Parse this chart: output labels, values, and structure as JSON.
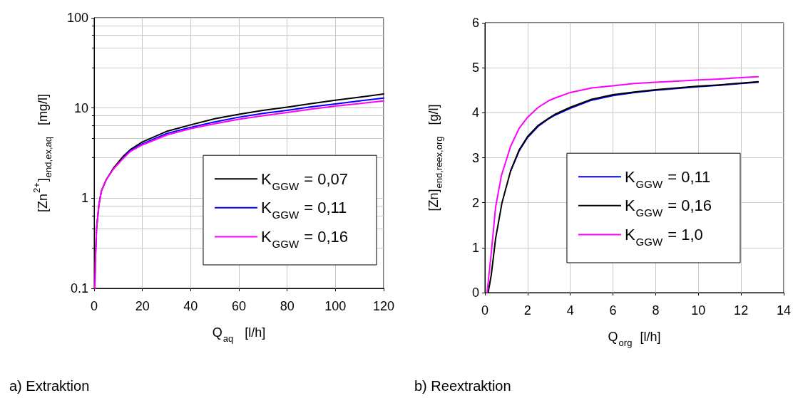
{
  "chart_data": [
    {
      "type": "line",
      "title": "a) Extraktion",
      "xlabel": "Q$_{aq}$   [l/h]",
      "ylabel": "[Zn$^{2+}$]$_{end,ex,aq}$   [mg/l]",
      "log": "y",
      "grid": true,
      "legend": "bottom right",
      "line_style": "solid",
      "marker": "none",
      "xlim": [
        0,
        120
      ],
      "xticks": [
        0,
        20,
        40,
        60,
        80,
        100,
        120
      ],
      "ylim": [
        0.1,
        100
      ],
      "yticks": [
        {
          "value": 0.1,
          "label": "0.1"
        },
        1,
        10,
        100
      ],
      "series": [
        {
          "name": "K$_{GGW}$ = 0,07",
          "color": "#000000",
          "x": [
            0.3,
            0.5,
            1,
            2,
            3,
            5,
            8,
            12,
            15,
            20,
            30,
            40,
            50,
            60,
            70,
            80,
            90,
            100,
            110,
            120
          ],
          "values": [
            0.1,
            0.2,
            0.46,
            0.85,
            1.2,
            1.6,
            2.15,
            2.9,
            3.45,
            4.2,
            5.5,
            6.5,
            7.6,
            8.5,
            9.4,
            10.2,
            11.2,
            12.2,
            13.2,
            14.3
          ]
        },
        {
          "name": "K$_{GGW}$ = 0,11",
          "color": "#0000ff",
          "x": [
            12,
            15,
            20,
            30,
            40,
            50,
            60,
            70,
            80,
            90,
            100,
            110,
            120
          ],
          "values": [
            2.8,
            3.35,
            4.0,
            5.2,
            6.1,
            7.0,
            7.9,
            8.7,
            9.4,
            10.3,
            11.1,
            12.0,
            12.9
          ]
        },
        {
          "name": "K$_{GGW}$ = 0,16",
          "color": "#ff00ff",
          "x": [
            0.3,
            0.5,
            1,
            2,
            3,
            5,
            8,
            12,
            15,
            20,
            30,
            40,
            50,
            60,
            70,
            80,
            90,
            100,
            110,
            120
          ],
          "values": [
            0.1,
            0.2,
            0.46,
            0.85,
            1.2,
            1.6,
            2.1,
            2.75,
            3.3,
            3.9,
            5.0,
            5.9,
            6.7,
            7.5,
            8.2,
            8.9,
            9.7,
            10.5,
            11.2,
            12.0
          ]
        }
      ]
    },
    {
      "type": "line",
      "title": "b) Reextraktion",
      "xlabel": "Q$_{org}$  [l/h]",
      "ylabel": "[Zn]$_{end,reex,org}$   [g/l]",
      "grid": true,
      "legend": "bottom right",
      "line_style": "solid",
      "marker": "none",
      "xlim": [
        0,
        14
      ],
      "xticks": [
        0,
        2,
        4,
        6,
        8,
        10,
        12,
        14
      ],
      "ylim": [
        0,
        6
      ],
      "yticks": [
        0,
        1,
        2,
        3,
        4,
        5,
        6
      ],
      "series": [
        {
          "name": "K$_{GGW}$ = 0,11",
          "color": "#0000ff",
          "x": [
            1.2,
            1.6,
            2,
            2.5,
            3,
            3.3,
            4,
            5,
            6,
            7,
            8,
            9,
            10,
            11,
            12,
            12.8
          ],
          "values": [
            2.7,
            3.15,
            3.45,
            3.7,
            3.87,
            3.95,
            4.1,
            4.28,
            4.38,
            4.45,
            4.5,
            4.54,
            4.58,
            4.61,
            4.65,
            4.68
          ]
        },
        {
          "name": "K$_{GGW}$ = 0,16",
          "color": "#000000",
          "x": [
            0.15,
            0.3,
            0.5,
            0.8,
            1.2,
            1.6,
            2,
            2.5,
            3,
            3.3,
            4,
            5,
            6,
            7,
            8,
            9,
            10,
            11,
            12,
            12.8
          ],
          "values": [
            0,
            0.4,
            1.2,
            2.0,
            2.7,
            3.17,
            3.47,
            3.72,
            3.88,
            3.97,
            4.12,
            4.3,
            4.4,
            4.46,
            4.51,
            4.55,
            4.59,
            4.62,
            4.66,
            4.69
          ]
        },
        {
          "name": "K$_{GGW}$ = 1,0",
          "color": "#ff00ff",
          "x": [
            0.1,
            0.3,
            0.5,
            0.77,
            1.2,
            1.6,
            2,
            2.5,
            3,
            3.3,
            4,
            5,
            6,
            7,
            8,
            9,
            10,
            11,
            12,
            12.8
          ],
          "values": [
            0,
            0.9,
            1.9,
            2.6,
            3.25,
            3.65,
            3.9,
            4.12,
            4.27,
            4.33,
            4.45,
            4.55,
            4.6,
            4.65,
            4.68,
            4.7,
            4.73,
            4.75,
            4.78,
            4.8
          ]
        }
      ]
    }
  ]
}
